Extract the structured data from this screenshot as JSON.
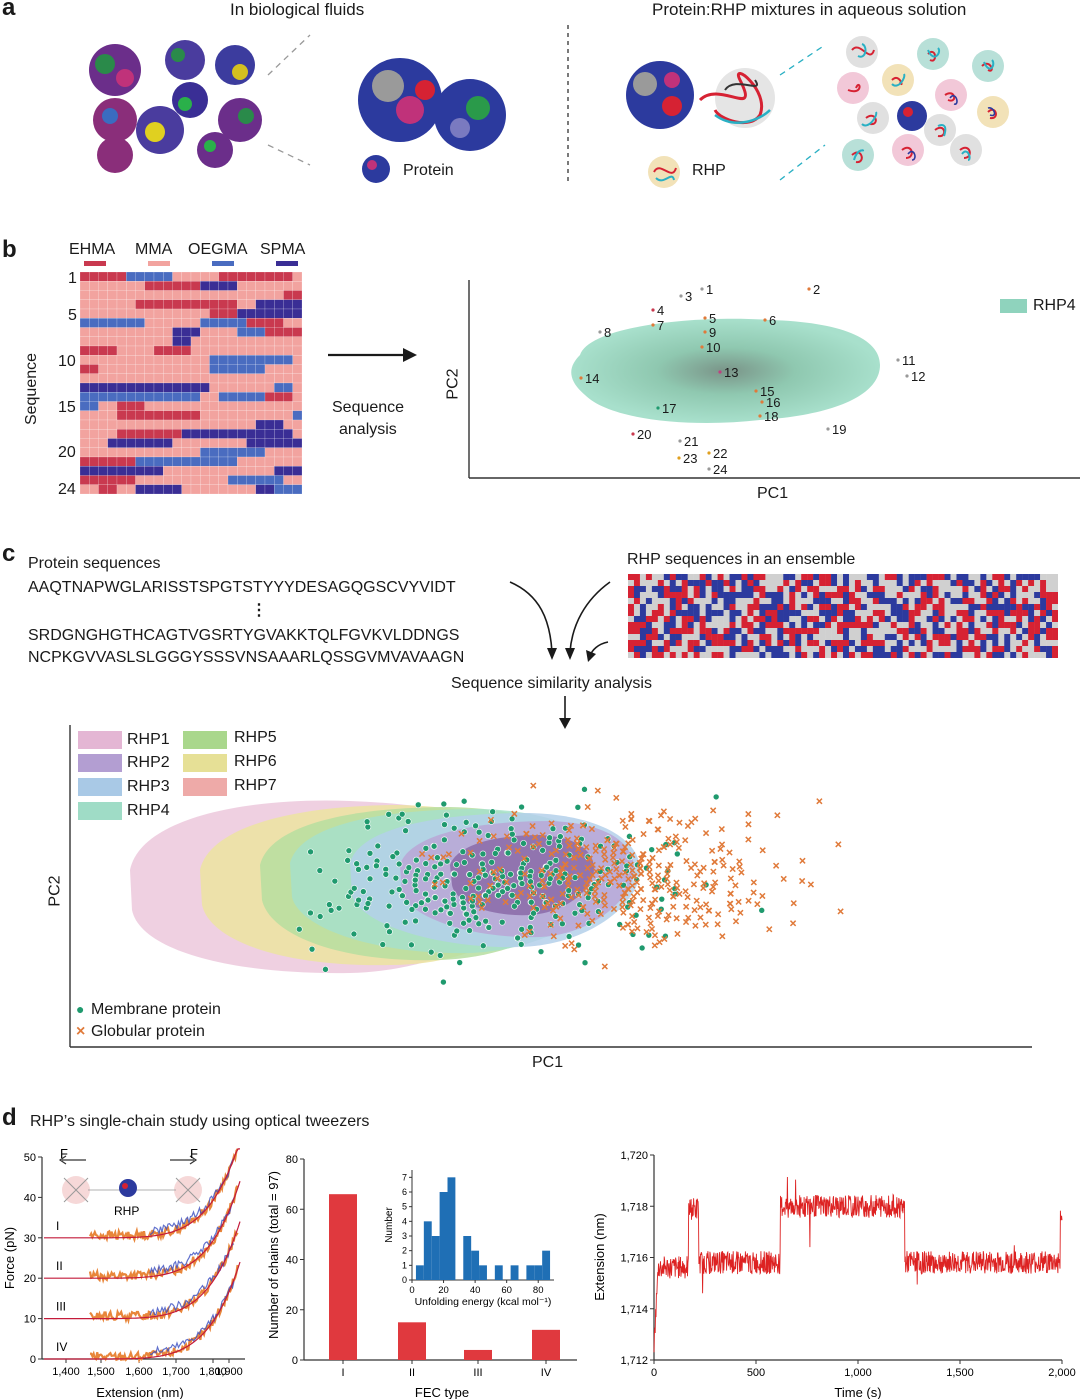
{
  "panel_a": {
    "letter": "a",
    "left_title": "In biological fluids",
    "right_title": "Protein:RHP mixtures in aqueous solution",
    "protein_label": "Protein",
    "rhp_label": "RHP",
    "colors": {
      "blue": "#2c3a9e",
      "magenta": "#c0327a",
      "red": "#d62233",
      "cyan": "#2ab0c4",
      "grey": "#9a9a9a"
    }
  },
  "panel_b": {
    "letter": "b",
    "monomers": [
      {
        "name": "EHMA",
        "color": "#c9394f"
      },
      {
        "name": "MMA",
        "color": "#f2a39f"
      },
      {
        "name": "OEGMA",
        "color": "#4a6cc0"
      },
      {
        "name": "SPMA",
        "color": "#3a2e95"
      }
    ],
    "heatmap_ylabel": "Sequence",
    "heatmap_ticks": [
      "1",
      "5",
      "10",
      "15",
      "20",
      "24"
    ],
    "arrow_label_1": "Sequence",
    "arrow_label_2": "analysis",
    "chart_data": {
      "type": "scatter",
      "xlabel": "PC1",
      "ylabel": "PC2",
      "legend": "RHP4",
      "legend_color": "#8fd3bd",
      "points": [
        "1",
        "2",
        "3",
        "4",
        "5",
        "6",
        "7",
        "8",
        "9",
        "10",
        "11",
        "12",
        "13",
        "14",
        "15",
        "16",
        "17",
        "18",
        "19",
        "20",
        "21",
        "22",
        "23",
        "24"
      ]
    }
  },
  "panel_c": {
    "letter": "c",
    "protein_seq_title": "Protein sequences",
    "seq1": "AAQTNAPWGLARISSTSPGTSTYYYDESAGQGSCVYVIDT",
    "ellipsis": "⋮",
    "seq2": "SRDGNGHGTHCAGTVGSRTYGVAKKTQLFGVKVLDDNGS",
    "seq3": "NCPKGVVASLSLGGGYSSSVNSAAARLQSSGVMVAVAAGN",
    "rhp_title": "RHP sequences in an ensemble",
    "similarity": "Sequence similarity analysis",
    "chart_data": {
      "type": "scatter",
      "xlabel": "PC1",
      "ylabel": "PC2",
      "legend": [
        {
          "name": "RHP1",
          "color": "#e4b6d4"
        },
        {
          "name": "RHP5",
          "color": "#a9d78c"
        },
        {
          "name": "RHP2",
          "color": "#b39ed2"
        },
        {
          "name": "RHP6",
          "color": "#e6e096"
        },
        {
          "name": "RHP3",
          "color": "#a9c9e6"
        },
        {
          "name": "RHP7",
          "color": "#eeaaa8"
        },
        {
          "name": "RHP4",
          "color": "#9fdcc6"
        }
      ],
      "markers": [
        {
          "name": "Membrane protein",
          "symbol": "●",
          "color": "#1f9a6e"
        },
        {
          "name": "Globular protein",
          "symbol": "×",
          "color": "#e07a3a"
        }
      ]
    }
  },
  "panel_d": {
    "letter": "d",
    "title": "RHP’s single-chain study using optical tweezers",
    "force": {
      "type": "line",
      "xlabel": "Extension (nm)",
      "ylabel": "Force (pN)",
      "xticks": [
        "1,400",
        "1,500",
        "1,600",
        "1,700",
        "1,800",
        "1,900"
      ],
      "yticks": [
        "0",
        "10",
        "20",
        "30",
        "40",
        "50"
      ],
      "ylim": [
        0,
        50
      ],
      "traces": [
        "I",
        "II",
        "III",
        "IV"
      ],
      "F_label": "F",
      "rhp_label": "RHP"
    },
    "bar": {
      "type": "bar",
      "xlabel": "FEC type",
      "ylabel": "Number of chains (total = 97)",
      "categories": [
        "I",
        "II",
        "III",
        "IV"
      ],
      "values": [
        66,
        15,
        4,
        12
      ],
      "yticks": [
        "0",
        "20",
        "40",
        "60",
        "80"
      ],
      "ylim": [
        0,
        80
      ],
      "color": "#e0393e"
    },
    "hist": {
      "type": "bar",
      "xlabel": "Unfolding energy (kcal mol⁻¹)",
      "ylabel": "Number",
      "xticks": [
        "0",
        "20",
        "40",
        "60",
        "80"
      ],
      "yticks": [
        "0",
        "1",
        "2",
        "3",
        "4",
        "5",
        "6",
        "7"
      ],
      "bins_x": [
        5,
        10,
        15,
        20,
        25,
        35,
        40,
        45,
        55,
        65,
        75,
        80,
        85
      ],
      "bins_y": [
        1,
        4,
        3,
        6,
        7,
        3,
        2,
        1,
        1,
        1,
        1,
        1,
        2
      ],
      "color": "#1f6fb5"
    },
    "time": {
      "type": "line",
      "xlabel": "Time (s)",
      "ylabel": "Extension (nm)",
      "xticks": [
        "0",
        "500",
        "1,000",
        "1,500",
        "2,000"
      ],
      "yticks": [
        "1,712",
        "1,714",
        "1,716",
        "1,718",
        "1,720"
      ],
      "xlim": [
        0,
        2000
      ],
      "ylim": [
        1712,
        1720
      ],
      "color": "#dd2222"
    }
  }
}
